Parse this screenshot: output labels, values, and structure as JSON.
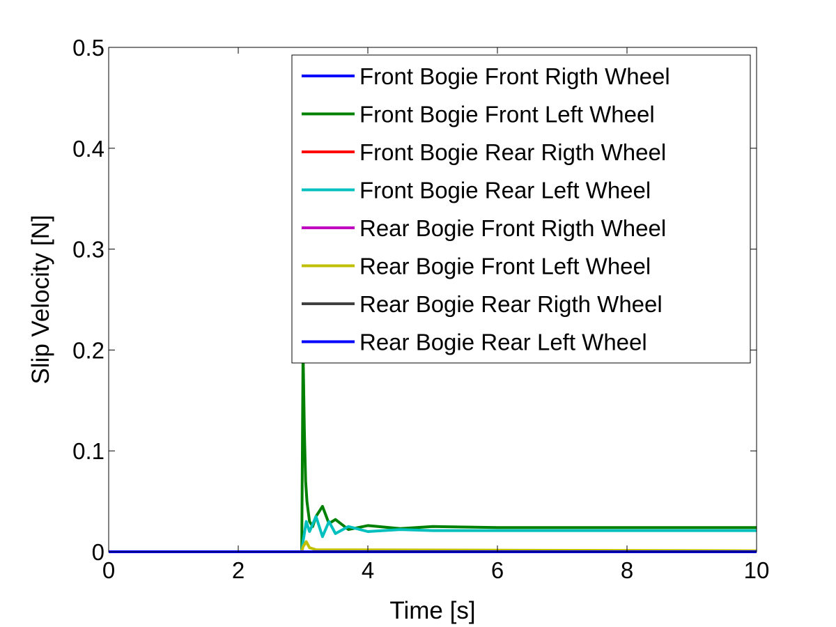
{
  "chart_data": {
    "type": "line",
    "title": "",
    "xlabel": "Time [s]",
    "ylabel": "Slip Velocity [N]",
    "xlim": [
      0,
      10
    ],
    "ylim": [
      0,
      0.5
    ],
    "xticks": [
      0,
      2,
      4,
      6,
      8,
      10
    ],
    "yticks": [
      0,
      0.1,
      0.2,
      0.3,
      0.4,
      0.5
    ],
    "xtick_labels": [
      "0",
      "2",
      "4",
      "6",
      "8",
      "10"
    ],
    "ytick_labels": [
      "0",
      "0.1",
      "0.2",
      "0.3",
      "0.4",
      "0.5"
    ],
    "grid": false,
    "legend_position": "top-right",
    "series": [
      {
        "name": "Front Bogie Front Rigth Wheel",
        "color": "#0000ff",
        "x": [
          0,
          10
        ],
        "y": [
          0,
          0
        ]
      },
      {
        "name": "Front Bogie Front Left Wheel",
        "color": "#008000",
        "x": [
          0,
          2.98,
          3.0,
          3.02,
          3.04,
          3.06,
          3.08,
          3.1,
          3.15,
          3.2,
          3.3,
          3.4,
          3.5,
          3.7,
          4.0,
          4.5,
          5.0,
          6.0,
          8.0,
          10.0
        ],
        "y": [
          0,
          0,
          0.2,
          0.12,
          0.07,
          0.05,
          0.04,
          0.03,
          0.025,
          0.035,
          0.045,
          0.028,
          0.032,
          0.022,
          0.026,
          0.023,
          0.025,
          0.024,
          0.024,
          0.024
        ]
      },
      {
        "name": "Front Bogie Rear Rigth Wheel",
        "color": "#ff0000",
        "x": [
          0,
          10
        ],
        "y": [
          0,
          0
        ]
      },
      {
        "name": "Front Bogie Rear Left Wheel",
        "color": "#00bfbf",
        "x": [
          0,
          2.98,
          3.0,
          3.05,
          3.1,
          3.2,
          3.3,
          3.4,
          3.5,
          3.7,
          4.0,
          4.5,
          5.0,
          6.0,
          8.0,
          10.0
        ],
        "y": [
          0,
          0,
          0.01,
          0.03,
          0.02,
          0.035,
          0.015,
          0.03,
          0.018,
          0.025,
          0.02,
          0.022,
          0.021,
          0.021,
          0.021,
          0.021
        ]
      },
      {
        "name": "Rear Bogie Front Rigth Wheel",
        "color": "#bf00bf",
        "x": [
          0,
          10
        ],
        "y": [
          0,
          0
        ]
      },
      {
        "name": "Rear Bogie Front Left Wheel",
        "color": "#bfbf00",
        "x": [
          0,
          2.98,
          3.0,
          3.05,
          3.1,
          3.2,
          10.0
        ],
        "y": [
          0,
          0,
          0.005,
          0.01,
          0.004,
          0.002,
          0.001
        ]
      },
      {
        "name": "Rear Bogie Rear Rigth Wheel",
        "color": "#404040",
        "x": [
          0,
          10
        ],
        "y": [
          0,
          0
        ]
      },
      {
        "name": "Rear Bogie Rear Left Wheel",
        "color": "#0000ff",
        "x": [
          0,
          10
        ],
        "y": [
          0,
          0
        ]
      }
    ]
  }
}
